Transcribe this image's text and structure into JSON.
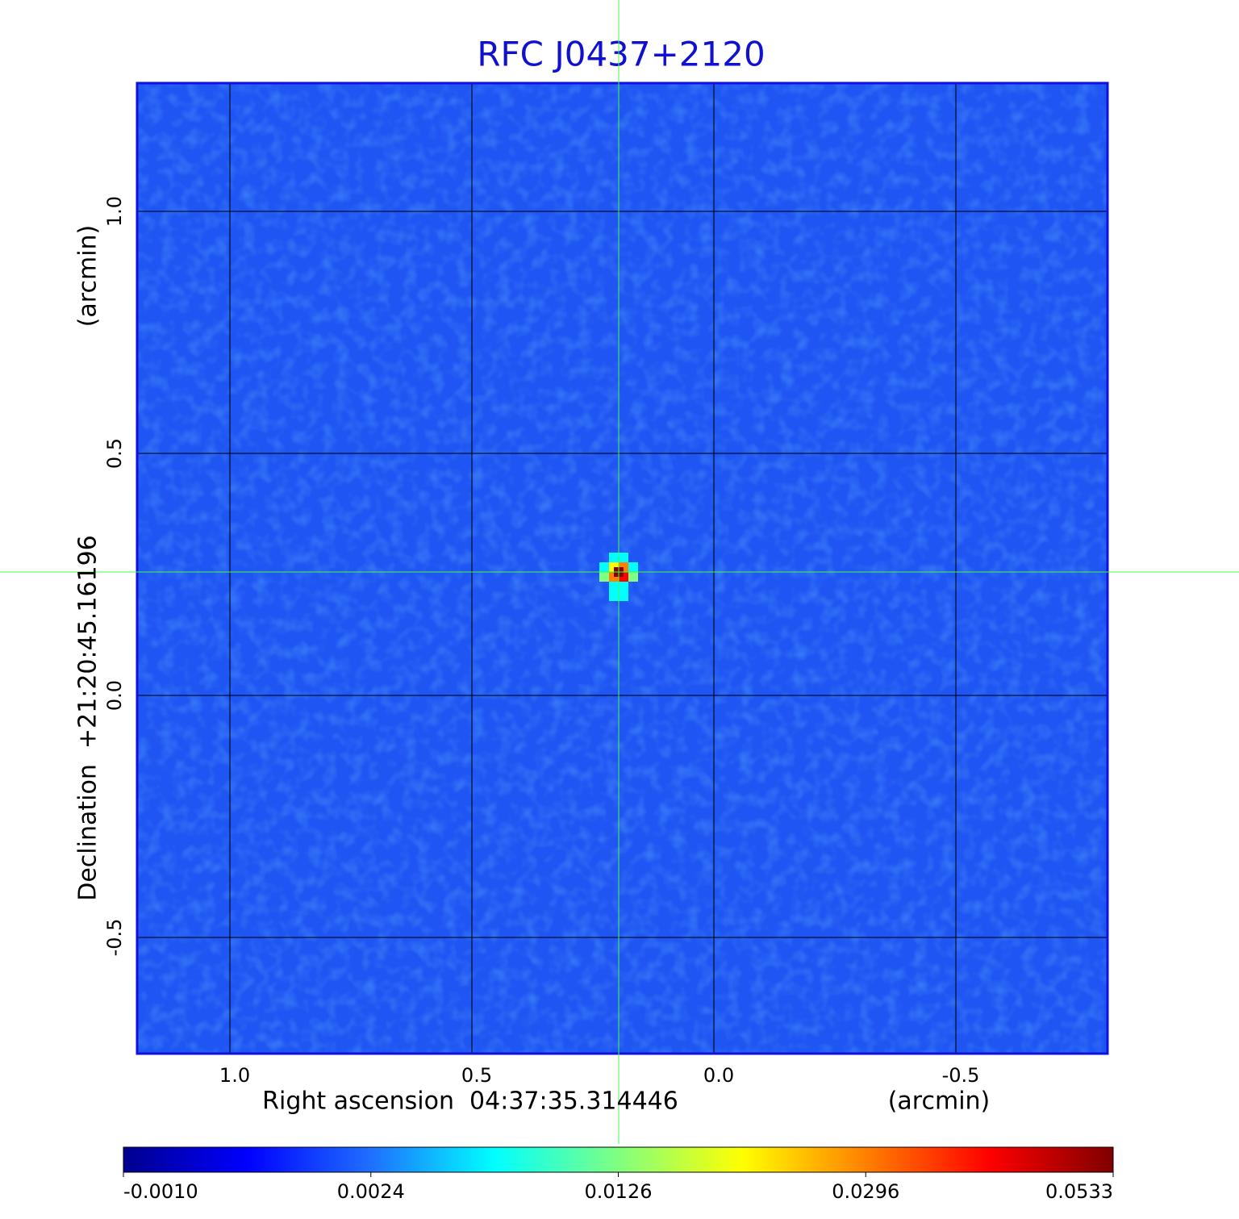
{
  "chart_data": {
    "type": "image",
    "title": "RFC J0437+2120",
    "x_label": "Right ascension  04:37:35.314446",
    "x_unit": "(arcmin)",
    "y_label": "Declination  +21:20:45.16196",
    "y_unit": "(arcmin)",
    "xlim": [
      1.1917,
      -0.8133
    ],
    "ylim": [
      -0.74,
      1.265
    ],
    "xticks": [
      {
        "value": 1,
        "label": "1.0"
      },
      0.5,
      {
        "value": 0,
        "label": "0.0"
      },
      -0.5
    ],
    "yticks": [
      -0.5,
      {
        "value": 0,
        "label": "0.0"
      },
      0.5,
      {
        "value": 1,
        "label": "1.0"
      }
    ],
    "grid": true,
    "source": {
      "x": 0.1967,
      "y": 0.255,
      "peak": 0.0533
    },
    "colorbar_ticks": [
      {
        "value": -0.001,
        "label": "-0.0010"
      },
      0.0024,
      0.0126,
      0.0296,
      0.0533
    ],
    "colormap": [
      "#00008f",
      "#0000ff",
      "#1f6fff",
      "#00ffff",
      "#80ff80",
      "#ffff00",
      "#ff8000",
      "#ff0000",
      "#800000"
    ],
    "background_color": "#1f55f2"
  }
}
